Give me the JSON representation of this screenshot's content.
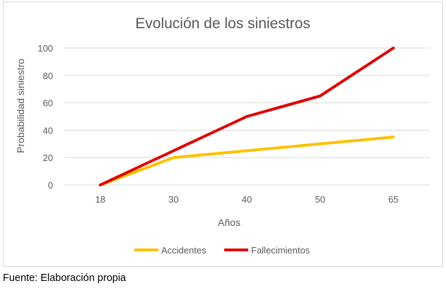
{
  "chart_data": {
    "type": "line",
    "title": "Evolución de los siniestros",
    "xlabel": "Años",
    "ylabel": "Probabilidad siniestro",
    "categories": [
      "18",
      "30",
      "40",
      "50",
      "65"
    ],
    "ylim": [
      0,
      100
    ],
    "yticks": [
      0,
      20,
      40,
      60,
      80,
      100
    ],
    "grid": true,
    "legend_position": "bottom",
    "series": [
      {
        "name": "Accidentes",
        "color": "#FFC000",
        "values": [
          0,
          20,
          25,
          30,
          35
        ]
      },
      {
        "name": "Fallecimientos",
        "color": "#E00000",
        "values": [
          0,
          25,
          50,
          65,
          100
        ]
      }
    ]
  },
  "source_note": "Fuente: Elaboración propia"
}
